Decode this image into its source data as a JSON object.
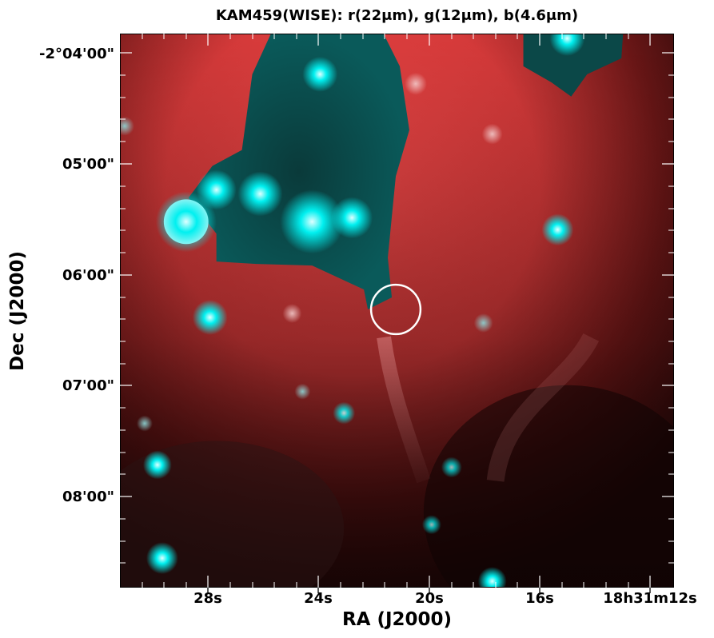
{
  "title": "KAM459(WISE): r(22μm), g(12μm), b(4.6μm)",
  "xlabel": "RA (J2000)",
  "ylabel": "Dec (J2000)",
  "ra_ticks": [
    "28s",
    "24s",
    "20s",
    "16s",
    "18h31m12s"
  ],
  "dec_ticks": [
    "-2°04'00\"",
    "05'00\"",
    "06'00\"",
    "07'00\"",
    "08'00\""
  ],
  "colors": {
    "red_channel": "#e23c3c",
    "cyan_channel": "#00e5e5",
    "dark_region": "#1a0606",
    "circle_marker": "#ffffff"
  },
  "marker": "circle"
}
